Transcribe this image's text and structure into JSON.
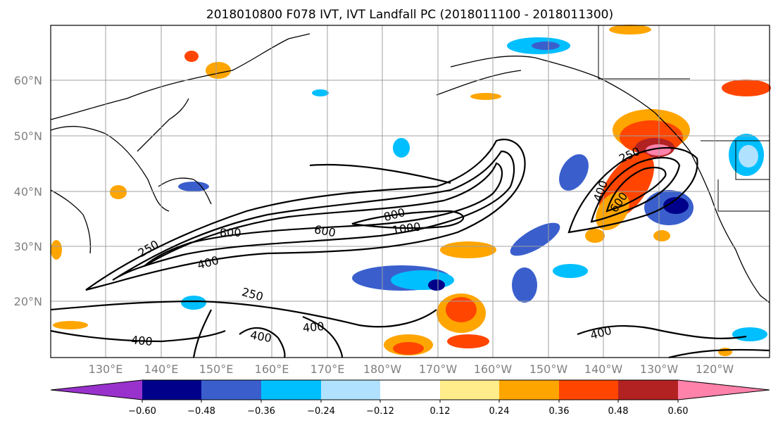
{
  "title": "2018010800 F078 IVT, IVT Landfall PC (2018011100 - 2018011300)",
  "lat_labels": [
    "60°N",
    "50°N",
    "40°N",
    "30°N",
    "20°N"
  ],
  "lon_labels": [
    "130°E",
    "140°E",
    "150°E",
    "160°E",
    "170°E",
    "180°W",
    "170°W",
    "160°W",
    "150°W",
    "140°W",
    "130°W",
    "120°W"
  ],
  "contour_labels": [
    "250",
    "400",
    "800",
    "600",
    "800",
    "1000",
    "250",
    "400",
    "400",
    "400",
    "400",
    "250",
    "400",
    "600"
  ],
  "colorbar": {
    "tick_labels": [
      "−0.60",
      "−0.48",
      "−0.36",
      "−0.24",
      "−0.12",
      "0.12",
      "0.24",
      "0.36",
      "0.48",
      "0.60"
    ],
    "colors": [
      "#9932cc",
      "#00008b",
      "#3a5fcd",
      "#00bfff",
      "#b0e2ff",
      "#ffffff",
      "#ffec8b",
      "#ffa500",
      "#ff4500",
      "#b22222",
      "#ff82ab"
    ]
  }
}
